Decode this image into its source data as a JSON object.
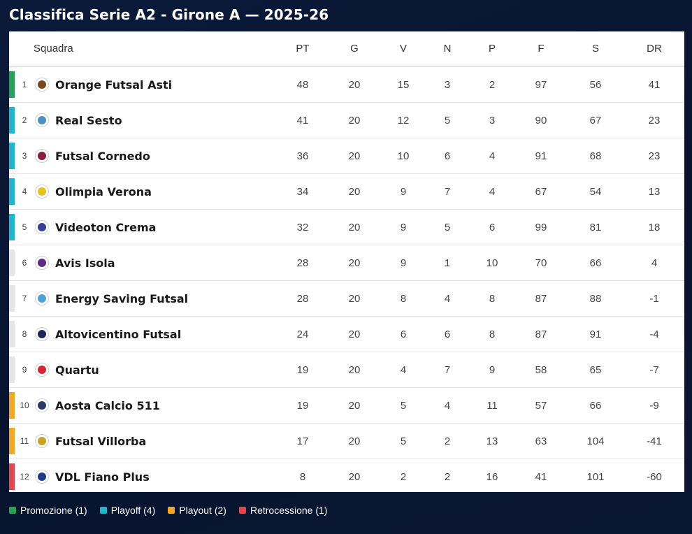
{
  "title": "Classifica Serie A2 - Girone A — 2025-26",
  "colors": {
    "promozione": "#27a155",
    "playoff": "#1bb7cf",
    "playout": "#f5a623",
    "retrocessione": "#e5454f",
    "neutral": "#e6e6e6"
  },
  "columns": {
    "team": "Squadra",
    "pt": "PT",
    "g": "G",
    "v": "V",
    "n": "N",
    "p": "P",
    "f": "F",
    "s": "S",
    "dr": "DR"
  },
  "rows": [
    {
      "pos": "1",
      "team": "Orange Futsal Asti",
      "pt": "48",
      "g": "20",
      "v": "15",
      "n": "3",
      "p": "2",
      "f": "97",
      "s": "56",
      "dr": "41",
      "zone": "promozione",
      "logo_color": "#7a4a1e"
    },
    {
      "pos": "2",
      "team": "Real Sesto",
      "pt": "41",
      "g": "20",
      "v": "12",
      "n": "5",
      "p": "3",
      "f": "90",
      "s": "67",
      "dr": "23",
      "zone": "playoff",
      "logo_color": "#4a90c8"
    },
    {
      "pos": "3",
      "team": "Futsal Cornedo",
      "pt": "36",
      "g": "20",
      "v": "10",
      "n": "6",
      "p": "4",
      "f": "91",
      "s": "68",
      "dr": "23",
      "zone": "playoff",
      "logo_color": "#8a1f3a"
    },
    {
      "pos": "4",
      "team": "Olimpia Verona",
      "pt": "34",
      "g": "20",
      "v": "9",
      "n": "7",
      "p": "4",
      "f": "67",
      "s": "54",
      "dr": "13",
      "zone": "playoff",
      "logo_color": "#e8c41c"
    },
    {
      "pos": "5",
      "team": "Videoton Crema",
      "pt": "32",
      "g": "20",
      "v": "9",
      "n": "5",
      "p": "6",
      "f": "99",
      "s": "81",
      "dr": "18",
      "zone": "playoff",
      "logo_color": "#3a3f9a"
    },
    {
      "pos": "6",
      "team": "Avis Isola",
      "pt": "28",
      "g": "20",
      "v": "9",
      "n": "1",
      "p": "10",
      "f": "70",
      "s": "66",
      "dr": "4",
      "zone": "neutral",
      "logo_color": "#5b2d8a"
    },
    {
      "pos": "7",
      "team": "Energy Saving Futsal",
      "pt": "28",
      "g": "20",
      "v": "8",
      "n": "4",
      "p": "8",
      "f": "87",
      "s": "88",
      "dr": "-1",
      "zone": "neutral",
      "logo_color": "#4aa3d8"
    },
    {
      "pos": "8",
      "team": "Altovicentino Futsal",
      "pt": "24",
      "g": "20",
      "v": "6",
      "n": "6",
      "p": "8",
      "f": "87",
      "s": "91",
      "dr": "-4",
      "zone": "neutral",
      "logo_color": "#1a2a5a"
    },
    {
      "pos": "9",
      "team": "Quartu",
      "pt": "19",
      "g": "20",
      "v": "4",
      "n": "7",
      "p": "9",
      "f": "58",
      "s": "65",
      "dr": "-7",
      "zone": "neutral",
      "logo_color": "#d8262e"
    },
    {
      "pos": "10",
      "team": "Aosta Calcio 511",
      "pt": "19",
      "g": "20",
      "v": "5",
      "n": "4",
      "p": "11",
      "f": "57",
      "s": "66",
      "dr": "-9",
      "zone": "playout",
      "logo_color": "#2a3a6a"
    },
    {
      "pos": "11",
      "team": "Futsal Villorba",
      "pt": "17",
      "g": "20",
      "v": "5",
      "n": "2",
      "p": "13",
      "f": "63",
      "s": "104",
      "dr": "-41",
      "zone": "playout",
      "logo_color": "#c9a227"
    },
    {
      "pos": "12",
      "team": "VDL Fiano Plus",
      "pt": "8",
      "g": "20",
      "v": "2",
      "n": "2",
      "p": "16",
      "f": "41",
      "s": "101",
      "dr": "-60",
      "zone": "retrocessione",
      "logo_color": "#1e3a8a"
    }
  ],
  "legend": [
    {
      "label": "Promozione (1)",
      "zone": "promozione"
    },
    {
      "label": "Playoff (4)",
      "zone": "playoff"
    },
    {
      "label": "Playout (2)",
      "zone": "playout"
    },
    {
      "label": "Retrocessione (1)",
      "zone": "retrocessione"
    }
  ]
}
